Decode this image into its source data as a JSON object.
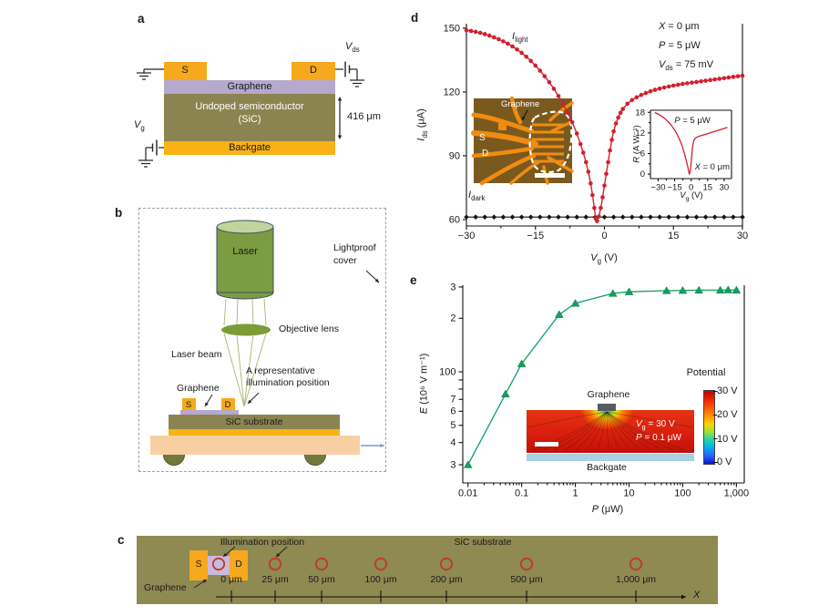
{
  "colors": {
    "red_curve": "#d1202e",
    "dark_curve": "#141414",
    "green_curve": "#12a061",
    "electrode_yellow": "#f6a91d",
    "backgate_yellow": "#f8b215",
    "graphene_purple": "#b5a9cd",
    "graphene_purple_light": "#c9badd",
    "sic_olive": "#8c8450",
    "substrate_olive": "#8f8952",
    "stage_peach": "#f8cfa2",
    "laser_green": "#7b9c42",
    "laser_top_green": "#c3d49b",
    "lens_green": "#7d9c35",
    "beam_green": "#a8b573",
    "photo_brown": "#7a591f",
    "photo_orange": "#f08c10",
    "backgate_blue": "#abd0e4",
    "graphene_dark": "#565b63",
    "wheel_olive": "#6e7b3c",
    "circle_red": "#bf3a28",
    "arrow_blue": "#7a9cc6"
  },
  "panel_labels": {
    "a": "a",
    "b": "b",
    "c": "c",
    "d": "d",
    "e": "e"
  },
  "panel_a": {
    "source": "S",
    "drain": "D",
    "graphene": "Graphene",
    "semiconductor_line1": "Undoped semiconductor",
    "semiconductor_line2": "(SiC)",
    "backgate": "Backgate",
    "thickness": "416 μm",
    "vds": "*V*_{ds}",
    "vg": "*V*_{g}"
  },
  "panel_b": {
    "laser": "Laser",
    "objective": "Objective lens",
    "beam": "Laser beam",
    "illum_line1": "A representative",
    "illum_line2": "illumination position",
    "graphene": "Graphene",
    "source": "S",
    "drain": "D",
    "substrate": "SiC substrate",
    "cover_line1": "Lightproof",
    "cover_line2": "cover"
  },
  "panel_c": {
    "illumination": "Illumination position",
    "substrate": "SiC substrate",
    "graphene": "Graphene",
    "source": "S",
    "drain": "D",
    "positions": [
      "0 μm",
      "25 μm",
      "50 μm",
      "100 μm",
      "200 μm",
      "500 μm",
      "1,000 μm"
    ],
    "axis": "*X*"
  },
  "panel_d": {
    "annotations": [
      "*X* = 0 μm",
      "*P* = 5 μW",
      "*V*_{ds} = 75 mV"
    ],
    "photo": {
      "graphene": "Graphene",
      "source": "S",
      "drain": "D"
    }
  },
  "panel_e": {
    "inset": {
      "graphene": "Graphene",
      "backgate": "Backgate",
      "vg": "*V*_{g} = 30 V",
      "power": "*P* = 0.1 μW"
    },
    "colorbar": {
      "title": "Potential",
      "ticks": [
        "30 V",
        "20 V",
        "10 V",
        "0 V"
      ]
    }
  },
  "chart_data": {
    "d_main": {
      "type": "line",
      "xlabel": "*V*_{g} (V)",
      "ylabel": "*I*_{ds} (μA)",
      "xlim": [
        -30,
        30
      ],
      "ylim": [
        57,
        152.1
      ],
      "xticks": {
        "values": [
          -30,
          -15,
          0,
          15,
          30
        ],
        "labels": [
          "−30",
          "−15",
          "0",
          "15",
          "30"
        ]
      },
      "yticks": {
        "values": [
          150,
          120,
          90,
          60
        ],
        "labels": [
          "150",
          "120",
          "90",
          "60"
        ]
      },
      "series": [
        {
          "name": "I_dark",
          "label": "*I*_{dark}",
          "color": "#141414",
          "marker": "diamond",
          "lw": 1.1,
          "points": [
            [
              -30,
              61.2
            ],
            [
              -28,
              61.2
            ],
            [
              -26,
              61.2
            ],
            [
              -24,
              61.2
            ],
            [
              -22,
              61.2
            ],
            [
              -20,
              61.2
            ],
            [
              -18,
              61.2
            ],
            [
              -16,
              61.2
            ],
            [
              -14,
              61.2
            ],
            [
              -12,
              61.2
            ],
            [
              -10,
              61.2
            ],
            [
              -8,
              61.2
            ],
            [
              -6,
              61.2
            ],
            [
              -4,
              61.2
            ],
            [
              -2,
              61.2
            ],
            [
              0,
              61.2
            ],
            [
              2,
              61.2
            ],
            [
              4,
              61.2
            ],
            [
              6,
              61.2
            ],
            [
              8,
              61.2
            ],
            [
              10,
              61.2
            ],
            [
              12,
              61.2
            ],
            [
              14,
              61.2
            ],
            [
              16,
              61.2
            ],
            [
              18,
              61.2
            ],
            [
              20,
              61.2
            ],
            [
              22,
              61.2
            ],
            [
              24,
              61.2
            ],
            [
              26,
              61.2
            ],
            [
              28,
              61.2
            ],
            [
              30,
              61.2
            ]
          ]
        },
        {
          "name": "I_light",
          "label": "*I*_{light}",
          "color": "#d1202e",
          "marker": "circle",
          "lw": 1.4,
          "points": [
            [
              -30,
              149
            ],
            [
              -29,
              148.7
            ],
            [
              -28,
              148.3
            ],
            [
              -27,
              147.8
            ],
            [
              -26,
              147.2
            ],
            [
              -25,
              146.5
            ],
            [
              -24,
              145.7
            ],
            [
              -23,
              144.8
            ],
            [
              -22,
              143.8
            ],
            [
              -21,
              142.7
            ],
            [
              -20,
              141.4
            ],
            [
              -19,
              140
            ],
            [
              -18,
              138.4
            ],
            [
              -17,
              136.6
            ],
            [
              -16,
              134.6
            ],
            [
              -15,
              132.4
            ],
            [
              -14,
              130
            ],
            [
              -13,
              127.4
            ],
            [
              -12,
              124.6
            ],
            [
              -11,
              121.5
            ],
            [
              -10,
              118.1
            ],
            [
              -9,
              114.4
            ],
            [
              -8,
              110.3
            ],
            [
              -7,
              105.8
            ],
            [
              -6,
              100.5
            ],
            [
              -5.2,
              95.5
            ],
            [
              -4.6,
              91.5
            ],
            [
              -4,
              87
            ],
            [
              -3.5,
              82.5
            ],
            [
              -3,
              77
            ],
            [
              -2.6,
              71.5
            ],
            [
              -2.2,
              65.5
            ],
            [
              -1.9,
              60.5
            ],
            [
              -1.6,
              59.3
            ],
            [
              -1.2,
              61.5
            ],
            [
              -0.8,
              65.5
            ],
            [
              -0.4,
              70.5
            ],
            [
              0,
              76
            ],
            [
              0.4,
              81.5
            ],
            [
              0.8,
              87
            ],
            [
              1.2,
              92.5
            ],
            [
              1.6,
              97.5
            ],
            [
              2,
              101.5
            ],
            [
              2.5,
              105.2
            ],
            [
              3,
              108
            ],
            [
              3.5,
              110.2
            ],
            [
              4,
              112
            ],
            [
              5,
              114.5
            ],
            [
              6,
              116.2
            ],
            [
              7,
              117.5
            ],
            [
              8,
              118.6
            ],
            [
              9,
              119.5
            ],
            [
              10,
              120.3
            ],
            [
              11,
              121
            ],
            [
              12,
              121.6
            ],
            [
              13,
              122.1
            ],
            [
              14,
              122.6
            ],
            [
              15,
              123
            ],
            [
              16,
              123.4
            ],
            [
              17,
              123.8
            ],
            [
              18,
              124.1
            ],
            [
              19,
              124.4
            ],
            [
              20,
              124.7
            ],
            [
              21,
              125
            ],
            [
              22,
              125.3
            ],
            [
              23,
              125.6
            ],
            [
              24,
              125.9
            ],
            [
              25,
              126.2
            ],
            [
              26,
              126.5
            ],
            [
              27,
              126.8
            ],
            [
              28,
              127.1
            ],
            [
              29,
              127.4
            ],
            [
              30,
              127.7
            ]
          ]
        }
      ]
    },
    "d_inset": {
      "type": "line",
      "xlabel": "*V*_{g} (V)",
      "ylabel": "*R* (A W⁻¹)",
      "annotation_power": "*P* = 5 μW",
      "annotation_position": "*X* = 0 μm",
      "xlim": [
        -30,
        30
      ],
      "ylim": [
        0,
        18
      ],
      "xticks": {
        "values": [
          -30,
          -15,
          0,
          15,
          30
        ],
        "labels": [
          "−30",
          "−15",
          "0",
          "15",
          "30"
        ]
      },
      "yticks": {
        "values": [
          18,
          12,
          6,
          0
        ],
        "labels": [
          "18",
          "12",
          "6",
          "0"
        ]
      },
      "series": [
        {
          "name": "R",
          "color": "#d1202e",
          "marker": "none",
          "lw": 1.3,
          "points": [
            [
              -33,
              17.9
            ],
            [
              -30,
              17.5
            ],
            [
              -28,
              17.1
            ],
            [
              -26,
              16.7
            ],
            [
              -24,
              16.2
            ],
            [
              -22,
              15.6
            ],
            [
              -20,
              15
            ],
            [
              -18,
              14.2
            ],
            [
              -16,
              13.3
            ],
            [
              -14,
              12.3
            ],
            [
              -12,
              11.1
            ],
            [
              -10,
              9.7
            ],
            [
              -9,
              8.9
            ],
            [
              -8,
              8
            ],
            [
              -7,
              7
            ],
            [
              -6,
              5.9
            ],
            [
              -5,
              4.7
            ],
            [
              -4,
              3.4
            ],
            [
              -3,
              2
            ],
            [
              -2.5,
              1.2
            ],
            [
              -2,
              0.5
            ],
            [
              -1.6,
              0.1
            ],
            [
              -1.2,
              0.3
            ],
            [
              -0.8,
              1
            ],
            [
              -0.4,
              2
            ],
            [
              0,
              3.3
            ],
            [
              0.5,
              5.2
            ],
            [
              1,
              7
            ],
            [
              1.5,
              8.3
            ],
            [
              2,
              9.2
            ],
            [
              2.5,
              9.8
            ],
            [
              3,
              10.1
            ],
            [
              4,
              10.5
            ],
            [
              5,
              10.7
            ],
            [
              7,
              11
            ],
            [
              9,
              11.2
            ],
            [
              11,
              11.4
            ],
            [
              13,
              11.6
            ],
            [
              15,
              11.8
            ],
            [
              18,
              12.1
            ],
            [
              21,
              12.4
            ],
            [
              24,
              12.7
            ],
            [
              27,
              13
            ],
            [
              30,
              13.3
            ],
            [
              33,
              13.6
            ]
          ]
        }
      ]
    },
    "e_main": {
      "type": "line",
      "xlabel": "*P* (μW)",
      "ylabel": "*E* (10⁶ V m⁻¹)",
      "xscale": "log",
      "yscale": "log",
      "xlim": [
        0.01,
        1000
      ],
      "ylim": [
        24,
        307
      ],
      "xticks": {
        "values": [
          0.01,
          0.1,
          1,
          10,
          100,
          1000
        ],
        "labels": [
          "0.01",
          "0.1",
          "1",
          "10",
          "100",
          "1,000"
        ]
      },
      "yticks": {
        "values": [
          300,
          200,
          100,
          90,
          80,
          70,
          60,
          50,
          40,
          30
        ],
        "labels": [
          "3",
          "2",
          "100",
          null,
          null,
          "7",
          "6",
          "5",
          "4",
          "3"
        ]
      },
      "series": [
        {
          "name": "E",
          "color": "#12a061",
          "marker": "triangle",
          "lw": 1.3,
          "points": [
            [
              0.01,
              30
            ],
            [
              0.05,
              75
            ],
            [
              0.1,
              111
            ],
            [
              0.5,
              210
            ],
            [
              1,
              243
            ],
            [
              5,
              276
            ],
            [
              10,
              282
            ],
            [
              50,
              286
            ],
            [
              100,
              287
            ],
            [
              200,
              288
            ],
            [
              500,
              288
            ],
            [
              700,
              289
            ],
            [
              1000,
              288
            ]
          ]
        }
      ]
    }
  }
}
